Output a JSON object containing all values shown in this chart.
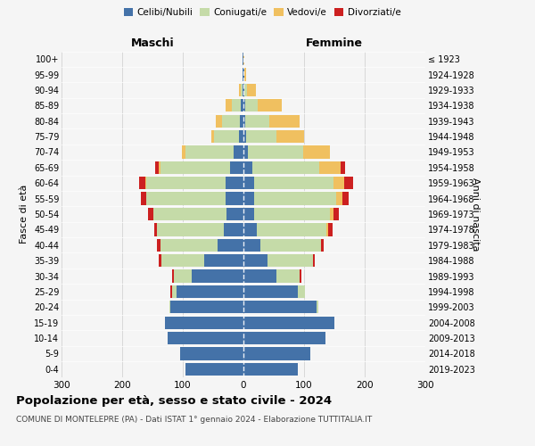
{
  "age_groups": [
    "0-4",
    "5-9",
    "10-14",
    "15-19",
    "20-24",
    "25-29",
    "30-34",
    "35-39",
    "40-44",
    "45-49",
    "50-54",
    "55-59",
    "60-64",
    "65-69",
    "70-74",
    "75-79",
    "80-84",
    "85-89",
    "90-94",
    "95-99",
    "100+"
  ],
  "birth_years": [
    "2019-2023",
    "2014-2018",
    "2009-2013",
    "2004-2008",
    "1999-2003",
    "1994-1998",
    "1989-1993",
    "1984-1988",
    "1979-1983",
    "1974-1978",
    "1969-1973",
    "1964-1968",
    "1959-1963",
    "1954-1958",
    "1949-1953",
    "1944-1948",
    "1939-1943",
    "1934-1938",
    "1929-1933",
    "1924-1928",
    "≤ 1923"
  ],
  "maschi": {
    "celibi": [
      95,
      105,
      125,
      130,
      120,
      110,
      85,
      65,
      42,
      32,
      28,
      30,
      30,
      22,
      16,
      8,
      6,
      4,
      2,
      1,
      1
    ],
    "coniugati": [
      0,
      0,
      0,
      0,
      2,
      8,
      30,
      70,
      95,
      110,
      120,
      130,
      130,
      115,
      80,
      40,
      30,
      15,
      3,
      0,
      0
    ],
    "vedovi": [
      0,
      0,
      0,
      0,
      0,
      0,
      0,
      0,
      0,
      0,
      1,
      1,
      2,
      3,
      5,
      5,
      10,
      10,
      3,
      1,
      0
    ],
    "divorziati": [
      0,
      0,
      0,
      0,
      0,
      2,
      3,
      5,
      5,
      5,
      8,
      8,
      10,
      5,
      0,
      0,
      0,
      0,
      0,
      0,
      0
    ]
  },
  "femmine": {
    "nubili": [
      90,
      110,
      135,
      150,
      120,
      90,
      55,
      40,
      28,
      22,
      18,
      18,
      18,
      15,
      8,
      5,
      3,
      3,
      2,
      1,
      0
    ],
    "coniugate": [
      0,
      0,
      0,
      0,
      3,
      12,
      38,
      75,
      100,
      115,
      125,
      135,
      130,
      110,
      90,
      50,
      40,
      20,
      4,
      0,
      0
    ],
    "vedove": [
      0,
      0,
      0,
      0,
      0,
      0,
      0,
      0,
      0,
      2,
      5,
      10,
      18,
      35,
      45,
      45,
      50,
      40,
      15,
      4,
      2
    ],
    "divorziate": [
      0,
      0,
      0,
      0,
      0,
      0,
      3,
      3,
      5,
      8,
      10,
      10,
      15,
      8,
      0,
      0,
      0,
      0,
      0,
      0,
      0
    ]
  },
  "colors": {
    "celibi_nubili": "#4472a8",
    "coniugati": "#c5dba8",
    "vedovi": "#f0c060",
    "divorziati": "#cc2020"
  },
  "xlim": 300,
  "title": "Popolazione per età, sesso e stato civile - 2024",
  "subtitle": "COMUNE DI MONTELEPRE (PA) - Dati ISTAT 1° gennaio 2024 - Elaborazione TUTTITALIA.IT",
  "ylabel_left": "Fasce di età",
  "ylabel_right": "Anni di nascita",
  "xlabel_left": "Maschi",
  "xlabel_right": "Femmine",
  "background_color": "#f5f5f5"
}
